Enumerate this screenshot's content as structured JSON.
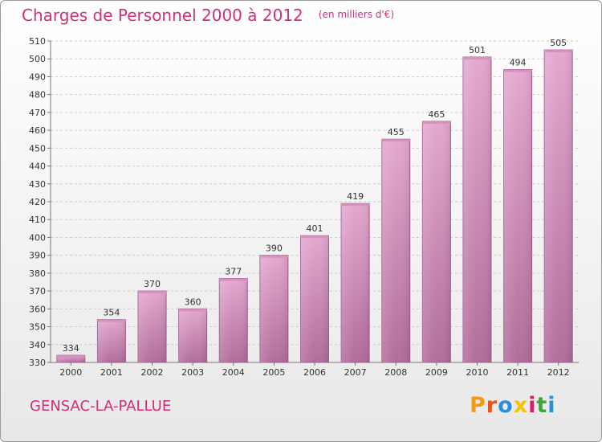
{
  "header": {
    "title": "Charges de Personnel 2000 à 2012",
    "subtitle": "(en milliers d'€)"
  },
  "footer": {
    "commune": "GENSAC-LA-PALLUE",
    "logo": "Proxiti"
  },
  "colors": {
    "title": "#d0307a",
    "bar_light": "#e4a8cf",
    "bar_dark": "#b16c9b",
    "logo": [
      "#f29a18",
      "#e8521e",
      "#2b8fd6",
      "#f2c400",
      "#d81f6c",
      "#3aa935",
      "#2b8fd6"
    ]
  },
  "chart_data": {
    "type": "bar",
    "title": "Charges de Personnel 2000 à 2012",
    "subtitle": "(en milliers d'€)",
    "categories": [
      "2000",
      "2001",
      "2002",
      "2003",
      "2004",
      "2005",
      "2006",
      "2007",
      "2008",
      "2009",
      "2010",
      "2011",
      "2012"
    ],
    "values": [
      334,
      354,
      370,
      360,
      377,
      390,
      401,
      419,
      455,
      465,
      501,
      494,
      505
    ],
    "ylim": [
      330,
      510
    ],
    "yticks": [
      330,
      340,
      350,
      360,
      370,
      380,
      390,
      400,
      410,
      420,
      430,
      440,
      450,
      460,
      470,
      480,
      490,
      500,
      510
    ],
    "grid": true,
    "xlabel": "",
    "ylabel": ""
  }
}
